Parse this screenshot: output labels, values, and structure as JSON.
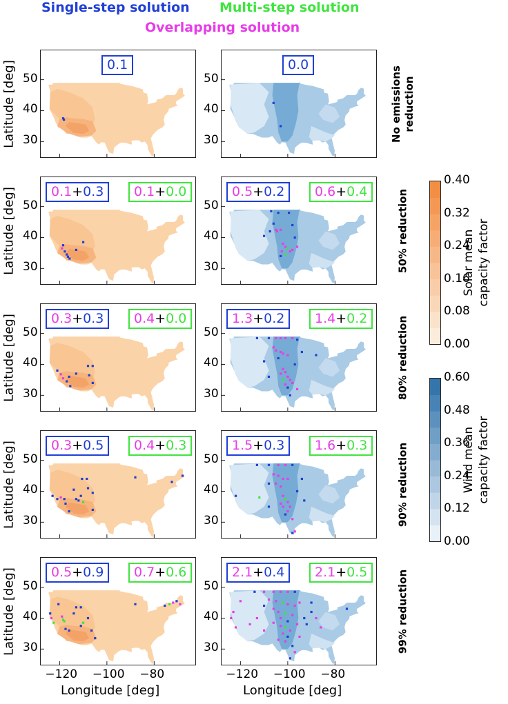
{
  "legend": {
    "single": {
      "label": "Single-step solution",
      "color": "#1f3fd6"
    },
    "multi": {
      "label": "Multi-step solution",
      "color": "#3fe43f"
    },
    "overlap": {
      "label": "Overlapping solution",
      "color": "#e83ce8"
    }
  },
  "axes": {
    "ylabel": "Latitude [deg]",
    "xlabel": "Longitude [deg]",
    "xticks": [
      "−120",
      "−100",
      "−80"
    ],
    "yticks": [
      "50",
      "40",
      "30"
    ]
  },
  "colorbars": {
    "solar": {
      "title_line1": "Solar mean",
      "title_line2": "capacity factor",
      "ticks": [
        "0.40",
        "0.32",
        "0.24",
        "0.16",
        "0.08",
        "0.00"
      ],
      "color_low": "#fdf1e3",
      "color_high": "#f28a3c"
    },
    "wind": {
      "title_line1": "Wind mean",
      "title_line2": "capacity factor",
      "ticks": [
        "0.60",
        "0.48",
        "0.36",
        "0.24",
        "0.12",
        "0.00"
      ],
      "color_low": "#f2f7fc",
      "color_high": "#2a6fa8"
    }
  },
  "rows": [
    {
      "label_line1": "No emissions",
      "label_line2": "reduction",
      "solar": {
        "single_only": "0.1"
      },
      "wind": {
        "single_only": "0.0"
      }
    },
    {
      "label_line1": "50% reduction",
      "label_line2": "",
      "solar": {
        "s_overlap": "0.1",
        "plus": "+",
        "s_single": "0.3",
        "m_overlap": "0.1",
        "m_multi": "0.0"
      },
      "wind": {
        "s_overlap": "0.5",
        "plus": "+",
        "s_single": "0.2",
        "m_overlap": "0.6",
        "m_multi": "0.4"
      }
    },
    {
      "label_line1": "80% reduction",
      "label_line2": "",
      "solar": {
        "s_overlap": "0.3",
        "plus": "+",
        "s_single": "0.3",
        "m_overlap": "0.4",
        "m_multi": "0.0"
      },
      "wind": {
        "s_overlap": "1.3",
        "plus": "+",
        "s_single": "0.2",
        "m_overlap": "1.4",
        "m_multi": "0.2"
      }
    },
    {
      "label_line1": "90% reduction",
      "label_line2": "",
      "solar": {
        "s_overlap": "0.3",
        "plus": "+",
        "s_single": "0.5",
        "m_overlap": "0.4",
        "m_multi": "0.3"
      },
      "wind": {
        "s_overlap": "1.5",
        "plus": "+",
        "s_single": "0.3",
        "m_overlap": "1.6",
        "m_multi": "0.3"
      }
    },
    {
      "label_line1": "99% reduction",
      "label_line2": "",
      "solar": {
        "s_overlap": "0.5",
        "plus": "+",
        "s_single": "0.9",
        "m_overlap": "0.7",
        "m_multi": "0.6"
      },
      "wind": {
        "s_overlap": "2.1",
        "plus": "+",
        "s_single": "0.4",
        "m_overlap": "2.1",
        "m_multi": "0.5"
      }
    }
  ],
  "chart_data": {
    "type": "scatter",
    "title": "",
    "xlabel": "Longitude [deg]",
    "ylabel": "Latitude [deg]",
    "xlim": [
      -128,
      -62
    ],
    "ylim": [
      24.5,
      59.5
    ],
    "panels": [
      {
        "row": 0,
        "map": "solar",
        "points": [
          [
            -118.5,
            37.5,
            "s"
          ],
          [
            -118.2,
            37.1,
            "s"
          ]
        ]
      },
      {
        "row": 0,
        "map": "wind",
        "points": [
          [
            -103,
            35,
            "s"
          ],
          [
            -106,
            42.5,
            "s"
          ]
        ]
      },
      {
        "row": 1,
        "map": "solar",
        "points": [
          [
            -119,
            36.5,
            "o"
          ],
          [
            -117.8,
            35.5,
            "s"
          ],
          [
            -117,
            34.5,
            "s"
          ],
          [
            -116.5,
            33.8,
            "s"
          ],
          [
            -115.8,
            33.2,
            "s"
          ],
          [
            -113,
            36,
            "s"
          ],
          [
            -110,
            38.5,
            "s"
          ],
          [
            -118.5,
            37.5,
            "s"
          ]
        ]
      },
      {
        "row": 1,
        "map": "wind",
        "points": [
          [
            -107,
            48.5,
            "s"
          ],
          [
            -104,
            48,
            "s"
          ],
          [
            -99.5,
            48,
            "s"
          ],
          [
            -106,
            44.5,
            "s"
          ],
          [
            -105,
            42.5,
            "o"
          ],
          [
            -104.5,
            42,
            "o"
          ],
          [
            -103,
            42.5,
            "o"
          ],
          [
            -107.5,
            42,
            "s"
          ],
          [
            -110,
            40.5,
            "s"
          ],
          [
            -102,
            38,
            "o"
          ],
          [
            -101,
            37,
            "o"
          ],
          [
            -100,
            36.5,
            "m"
          ],
          [
            -102.5,
            35.5,
            "o"
          ],
          [
            -101,
            34.5,
            "m"
          ],
          [
            -99,
            35.5,
            "o"
          ],
          [
            -98,
            36,
            "o"
          ],
          [
            -103,
            34,
            "s"
          ],
          [
            -97,
            40,
            "s"
          ],
          [
            -98,
            44,
            "s"
          ],
          [
            -96,
            37,
            "o"
          ]
        ]
      },
      {
        "row": 2,
        "map": "solar",
        "points": [
          [
            -119.5,
            36.8,
            "o"
          ],
          [
            -118.5,
            35.5,
            "o"
          ],
          [
            -117,
            34.5,
            "s"
          ],
          [
            -116,
            36,
            "s"
          ],
          [
            -115.5,
            33,
            "s"
          ],
          [
            -113,
            37,
            "s"
          ],
          [
            -108,
            39.5,
            "s"
          ],
          [
            -106,
            39.5,
            "s"
          ],
          [
            -107.5,
            36.5,
            "s"
          ],
          [
            -106,
            34,
            "s"
          ],
          [
            -121,
            38,
            "s"
          ]
        ]
      },
      {
        "row": 2,
        "map": "wind",
        "points": [
          [
            -113,
            48.5,
            "s"
          ],
          [
            -108,
            48.5,
            "s"
          ],
          [
            -105,
            48.5,
            "o"
          ],
          [
            -103,
            48.5,
            "o"
          ],
          [
            -101,
            48.5,
            "o"
          ],
          [
            -98,
            48.5,
            "o"
          ],
          [
            -96,
            48,
            "s"
          ],
          [
            -106,
            45.5,
            "o"
          ],
          [
            -105,
            44.5,
            "o"
          ],
          [
            -103,
            44,
            "o"
          ],
          [
            -102,
            43.5,
            "o"
          ],
          [
            -100,
            43,
            "o"
          ],
          [
            -104,
            42,
            "s"
          ],
          [
            -110,
            41,
            "s"
          ],
          [
            -102,
            38.5,
            "o"
          ],
          [
            -101,
            37.5,
            "o"
          ],
          [
            -103,
            37,
            "o"
          ],
          [
            -100,
            36,
            "o"
          ],
          [
            -102,
            35,
            "m"
          ],
          [
            -99,
            35,
            "o"
          ],
          [
            -101,
            33.5,
            "o"
          ],
          [
            -100,
            32.5,
            "s"
          ],
          [
            -98,
            34,
            "o"
          ],
          [
            -97,
            40,
            "s"
          ],
          [
            -94,
            44,
            "s"
          ],
          [
            -99,
            30,
            "s"
          ],
          [
            -96,
            32,
            "o"
          ],
          [
            -108,
            36,
            "s"
          ],
          [
            -88,
            43,
            "s"
          ]
        ]
      },
      {
        "row": 3,
        "map": "solar",
        "points": [
          [
            -123,
            38.5,
            "s"
          ],
          [
            -121,
            37.5,
            "s"
          ],
          [
            -119.5,
            38,
            "o"
          ],
          [
            -118,
            37.5,
            "s"
          ],
          [
            -117.5,
            36,
            "s"
          ],
          [
            -116,
            33.5,
            "s"
          ],
          [
            -114,
            40.5,
            "s"
          ],
          [
            -112,
            37,
            "s"
          ],
          [
            -111,
            38.5,
            "s"
          ],
          [
            -110.5,
            44,
            "s"
          ],
          [
            -108.5,
            44,
            "s"
          ],
          [
            -108,
            41,
            "s"
          ],
          [
            -106,
            39.5,
            "s"
          ],
          [
            -106,
            34,
            "s"
          ],
          [
            -110,
            36.5,
            "m"
          ],
          [
            -113,
            37.5,
            "s"
          ],
          [
            -88,
            44.5,
            "s"
          ],
          [
            -72.5,
            43,
            "s"
          ],
          [
            -68,
            45,
            "s"
          ]
        ]
      },
      {
        "row": 3,
        "map": "wind",
        "points": [
          [
            -113,
            48.5,
            "s"
          ],
          [
            -108,
            48.5,
            "s"
          ],
          [
            -104,
            48.5,
            "o"
          ],
          [
            -101,
            48.5,
            "o"
          ],
          [
            -98,
            48.5,
            "s"
          ],
          [
            -106,
            45.5,
            "o"
          ],
          [
            -104,
            45,
            "o"
          ],
          [
            -102,
            44,
            "o"
          ],
          [
            -100,
            44,
            "o"
          ],
          [
            -108,
            42.5,
            "s"
          ],
          [
            -105,
            42.5,
            "o"
          ],
          [
            -103,
            41.5,
            "o"
          ],
          [
            -122,
            38.5,
            "s"
          ],
          [
            -112,
            38,
            "m"
          ],
          [
            -102,
            38.5,
            "o"
          ],
          [
            -101,
            37.5,
            "m"
          ],
          [
            -100,
            36.5,
            "o"
          ],
          [
            -103,
            36,
            "o"
          ],
          [
            -102,
            35,
            "o"
          ],
          [
            -99,
            35,
            "o"
          ],
          [
            -100,
            33.5,
            "o"
          ],
          [
            -101,
            32.5,
            "s"
          ],
          [
            -98,
            31,
            "o"
          ],
          [
            -97,
            27,
            "o"
          ],
          [
            -98,
            26.5,
            "s"
          ],
          [
            -96,
            40,
            "s"
          ],
          [
            -94,
            44,
            "s"
          ],
          [
            -108,
            35,
            "s"
          ],
          [
            -93,
            37,
            "s"
          ]
        ]
      },
      {
        "row": 4,
        "map": "solar",
        "points": [
          [
            -124,
            41.5,
            "s"
          ],
          [
            -123.5,
            40,
            "o"
          ],
          [
            -122.5,
            38.5,
            "m"
          ],
          [
            -120.5,
            44.5,
            "s"
          ],
          [
            -119,
            40.5,
            "o"
          ],
          [
            -118,
            39,
            "m"
          ],
          [
            -117.5,
            36.5,
            "s"
          ],
          [
            -116,
            36,
            "s"
          ],
          [
            -114,
            41.5,
            "s"
          ],
          [
            -113,
            43.5,
            "s"
          ],
          [
            -111,
            43.5,
            "s"
          ],
          [
            -111,
            37.5,
            "s"
          ],
          [
            -110,
            38.5,
            "m"
          ],
          [
            -108,
            40,
            "s"
          ],
          [
            -106.5,
            36,
            "s"
          ],
          [
            -105,
            33.5,
            "s"
          ],
          [
            -118.5,
            39.5,
            "m"
          ],
          [
            -88,
            44.5,
            "s"
          ],
          [
            -75.5,
            44,
            "s"
          ],
          [
            -73.5,
            44.5,
            "m"
          ],
          [
            -72,
            45,
            "o"
          ],
          [
            -70.5,
            45.5,
            "s"
          ],
          [
            -69,
            44.5,
            "o"
          ]
        ]
      },
      {
        "row": 4,
        "map": "wind",
        "points": [
          [
            -120,
            45.5,
            "o"
          ],
          [
            -123,
            42,
            "o"
          ],
          [
            -124,
            40,
            "o"
          ],
          [
            -122,
            37,
            "o"
          ],
          [
            -114,
            48.5,
            "s"
          ],
          [
            -110,
            48.5,
            "o"
          ],
          [
            -106,
            48.5,
            "o"
          ],
          [
            -103,
            48.5,
            "o"
          ],
          [
            -100,
            48.5,
            "o"
          ],
          [
            -97,
            48.5,
            "s"
          ],
          [
            -108,
            46,
            "o"
          ],
          [
            -105,
            45.5,
            "o"
          ],
          [
            -102,
            45,
            "m"
          ],
          [
            -100,
            44.5,
            "o"
          ],
          [
            -110,
            44,
            "s"
          ],
          [
            -106,
            43,
            "o"
          ],
          [
            -104,
            42,
            "o"
          ],
          [
            -101,
            41.5,
            "m"
          ],
          [
            -97,
            44,
            "o"
          ],
          [
            -98,
            41,
            "o"
          ],
          [
            -103,
            40,
            "o"
          ],
          [
            -100,
            39,
            "s"
          ],
          [
            -106,
            38.5,
            "o"
          ],
          [
            -103,
            37.5,
            "o"
          ],
          [
            -101,
            37,
            "m"
          ],
          [
            -99,
            36,
            "o"
          ],
          [
            -102,
            35,
            "o"
          ],
          [
            -100,
            34,
            "s"
          ],
          [
            -104,
            33,
            "o"
          ],
          [
            -101,
            32.5,
            "o"
          ],
          [
            -98,
            31,
            "s"
          ],
          [
            -97,
            29,
            "o"
          ],
          [
            -99,
            27,
            "s"
          ],
          [
            -96,
            38,
            "o"
          ],
          [
            -93,
            40,
            "s"
          ],
          [
            -90,
            42,
            "s"
          ],
          [
            -113,
            40,
            "o"
          ],
          [
            -116,
            38,
            "o"
          ],
          [
            -110,
            36,
            "o"
          ],
          [
            -95,
            34,
            "o"
          ],
          [
            -92,
            38,
            "s"
          ],
          [
            -90,
            45,
            "s"
          ],
          [
            -86,
            37,
            "o"
          ],
          [
            -88,
            40,
            "o"
          ],
          [
            -95,
            45,
            "o"
          ],
          [
            -75,
            43,
            "s"
          ]
        ]
      }
    ]
  }
}
